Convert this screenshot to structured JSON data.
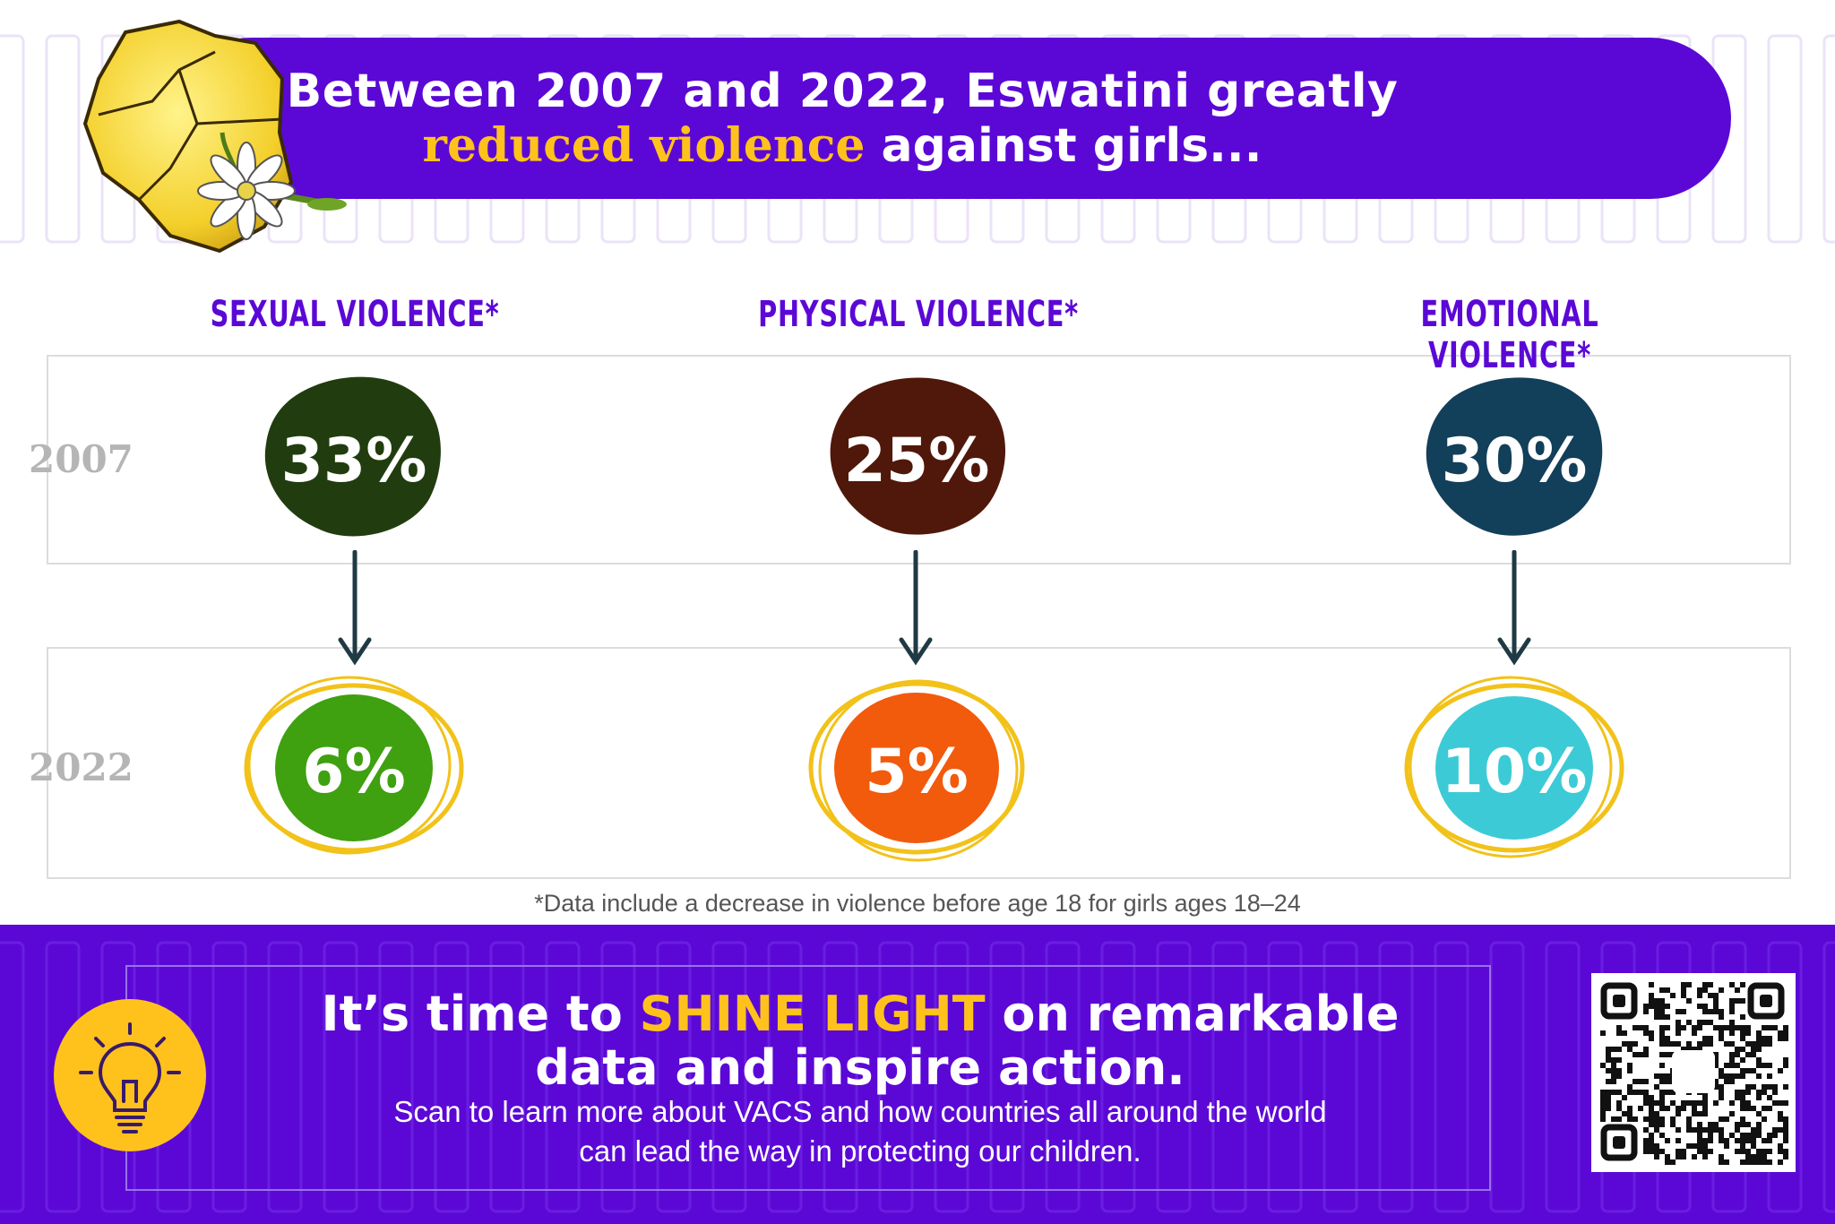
{
  "header": {
    "line1": "Between 2007 and 2022, Eswatini greatly",
    "line2_highlight": "reduced violence",
    "line2_rest": " against girls..."
  },
  "columns": [
    {
      "title": "SEXUAL VIOLENCE*",
      "value_2007": "33%",
      "value_2022": "6%",
      "color_2007": "#213d0f",
      "color_2022": "#3fa010"
    },
    {
      "title": "PHYSICAL VIOLENCE*",
      "value_2007": "25%",
      "value_2022": "5%",
      "color_2007": "#50180a",
      "color_2022": "#f25a0c"
    },
    {
      "title": "EMOTIONAL VIOLENCE*",
      "value_2007": "30%",
      "value_2022": "10%",
      "color_2007": "#123f5a",
      "color_2022": "#3ccbd6"
    }
  ],
  "years": [
    "2007",
    "2022"
  ],
  "footnote": "*Data include a decrease in violence before age 18 for girls ages 18–24",
  "footer": {
    "line1_pre": "It’s time to ",
    "line1_highlight": "SHINE LIGHT",
    "line1_post": " on remarkable",
    "line2": "data and inspire action.",
    "sub1": "Scan to learn more about VACS and how countries all around the world",
    "sub2": "can lead the way in protecting our children."
  },
  "icons": {
    "bulb": "lightbulb-icon",
    "qr": "qr-code",
    "map": "eswatini-map-icon",
    "flower": "flower-icon"
  },
  "colors": {
    "purple": "#5b08d6",
    "gold": "#ffc21c",
    "ring": "#f2c21a"
  }
}
